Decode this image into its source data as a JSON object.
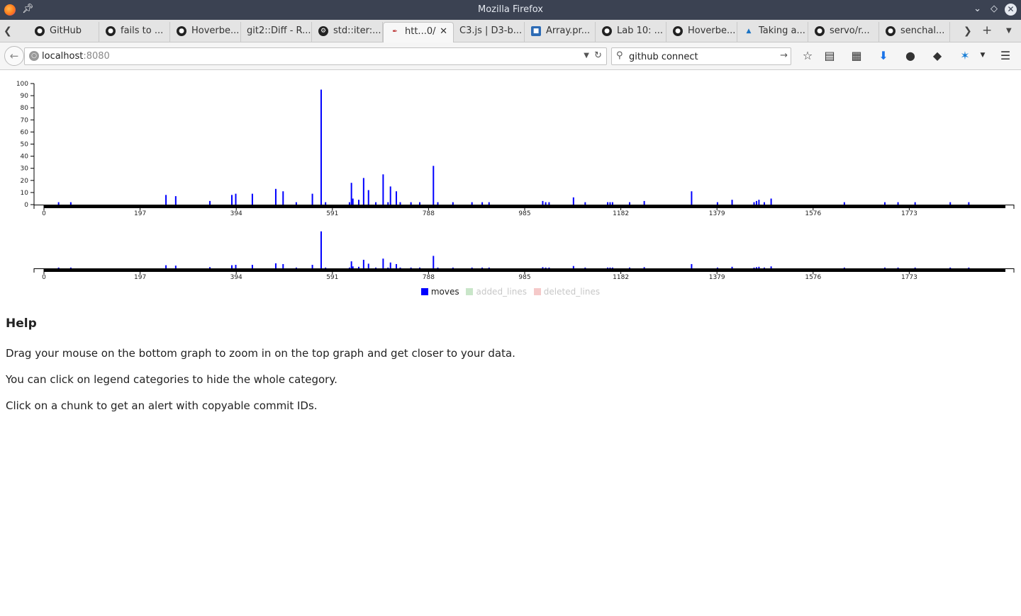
{
  "window": {
    "title": "Mozilla Firefox"
  },
  "tabs": [
    {
      "label": "GitHub"
    },
    {
      "label": "fails to ..."
    },
    {
      "label": "Hoverbe..."
    },
    {
      "label": "git2::Diff - R..."
    },
    {
      "label": "std::iter:..."
    },
    {
      "label": "htt...0/"
    },
    {
      "label": "C3.js | D3-b..."
    },
    {
      "label": "Array.pr..."
    },
    {
      "label": "Lab 10: ..."
    },
    {
      "label": "Hoverbe..."
    },
    {
      "label": "Taking a..."
    },
    {
      "label": "servo/r..."
    },
    {
      "label": "senchal..."
    }
  ],
  "address": {
    "host": "localhost",
    "port": ":8080"
  },
  "search": {
    "value": "github connect"
  },
  "chart_data": {
    "type": "bar",
    "series": [
      {
        "name": "moves",
        "color": "#0000ff"
      },
      {
        "name": "added_lines",
        "color": "#98df8a"
      },
      {
        "name": "deleted_lines",
        "color": "#ff9896"
      }
    ],
    "xlim": [
      0,
      1970
    ],
    "ylim": [
      0,
      100
    ],
    "x_ticks": [
      "0",
      "197",
      "394",
      "591",
      "788",
      "985",
      "1182",
      "1379",
      "1576",
      "1773"
    ],
    "x_tick_values": [
      0,
      197,
      394,
      591,
      788,
      985,
      1182,
      1379,
      1576,
      1773
    ],
    "y_ticks": [
      "0",
      "10",
      "20",
      "30",
      "40",
      "50",
      "60",
      "70",
      "80",
      "90",
      "100"
    ],
    "y_tick_values": [
      0,
      10,
      20,
      30,
      40,
      50,
      60,
      70,
      80,
      90,
      100
    ],
    "moves_x": [
      30,
      55,
      250,
      270,
      340,
      385,
      393,
      427,
      475,
      490,
      517,
      550,
      568,
      577,
      626,
      630,
      633,
      645,
      655,
      665,
      680,
      695,
      705,
      710,
      722,
      730,
      752,
      770,
      798,
      807,
      838,
      877,
      898,
      912,
      1022,
      1028,
      1035,
      1085,
      1109,
      1155,
      1160,
      1165,
      1200,
      1230,
      1327,
      1380,
      1410,
      1455,
      1460,
      1465,
      1476,
      1490,
      1640,
      1723,
      1750,
      1785,
      1857,
      1895
    ],
    "moves_y": [
      2,
      2,
      8,
      7,
      3,
      8,
      9,
      9,
      13,
      11,
      2,
      9,
      95,
      2,
      2,
      18,
      5,
      4,
      22,
      12,
      2,
      25,
      2,
      15,
      11,
      2,
      2,
      2,
      32,
      2,
      2,
      2,
      2,
      2,
      3,
      2,
      2,
      6,
      2,
      2,
      2,
      2,
      2,
      3,
      11,
      2,
      4,
      2,
      3,
      4,
      2,
      5,
      2,
      2,
      2,
      2,
      2,
      2
    ]
  },
  "legend": {
    "moves": "moves",
    "added_lines": "added_lines",
    "deleted_lines": "deleted_lines"
  },
  "help": {
    "heading": "Help",
    "lines": [
      "Drag your mouse on the bottom graph to zoom in on the top graph and get closer to your data.",
      "You can click on legend categories to hide the whole category.",
      "Click on a chunk to get an alert with copyable commit IDs."
    ]
  }
}
